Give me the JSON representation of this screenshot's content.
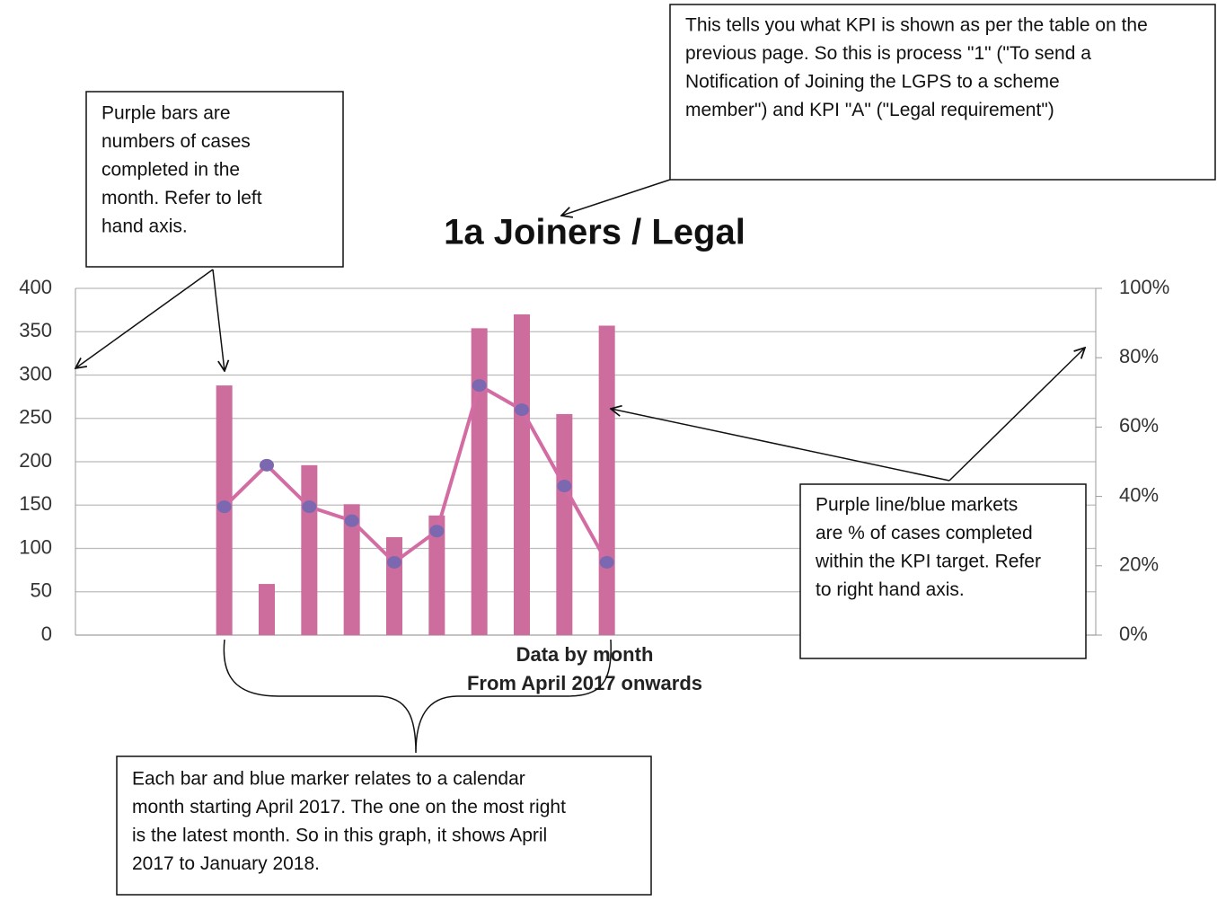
{
  "chart_data": {
    "type": "bar-line",
    "title": "1a Joiners / Legal",
    "xlabel": [
      "Data by month",
      "From April 2017 onwards"
    ],
    "categories": [
      null,
      null,
      null,
      null,
      null,
      null,
      null,
      null,
      null,
      null,
      null,
      null,
      null,
      null,
      null,
      null,
      null,
      null,
      null,
      null,
      null,
      null,
      null,
      null
    ],
    "series": [
      {
        "type": "bar",
        "color": "#cc6d9e",
        "values": [
          null,
          null,
          null,
          288,
          59,
          196,
          151,
          113,
          138,
          354,
          370,
          255,
          357,
          null,
          null,
          null,
          null,
          null,
          null,
          null,
          null,
          null,
          null,
          null
        ]
      },
      {
        "type": "line",
        "axis": "y2",
        "color": "#d46ca4",
        "marker_color": "#7b68b0",
        "values": [
          null,
          null,
          null,
          37,
          49,
          37,
          33,
          21,
          30,
          72,
          65,
          43,
          21,
          null,
          null,
          null,
          null,
          null,
          null,
          null,
          null,
          null,
          null,
          null
        ]
      }
    ],
    "ylim": [
      0,
      400
    ],
    "yticks": [
      0,
      50,
      100,
      150,
      200,
      250,
      300,
      350,
      400
    ],
    "y2lim": [
      0,
      100
    ],
    "y2ticks": [
      {
        "value": 0,
        "label": "0%"
      },
      {
        "value": 20,
        "label": "20%"
      },
      {
        "value": 40,
        "label": "40%"
      },
      {
        "value": 60,
        "label": "60%"
      },
      {
        "value": 80,
        "label": "80%"
      },
      {
        "value": 100,
        "label": "100%"
      }
    ],
    "grid": true
  },
  "annotations": [
    {
      "lines": [
        "Purple bars are",
        "numbers of cases",
        "completed in the",
        "month.  Refer to left",
        "hand axis."
      ]
    },
    {
      "lines": [
        "This tells you what KPI is shown as per the table on the",
        "previous page.  So this is process \"1\" (\"To send a",
        "Notification of Joining the LGPS to a scheme",
        "member\") and KPI \"A\" (\"Legal requirement\")"
      ]
    },
    {
      "lines": [
        "Purple line/blue markets",
        "are % of cases completed",
        "within the KPI target. Refer",
        "to right hand axis."
      ]
    },
    {
      "lines": [
        "Each bar and blue marker relates to a calendar",
        "month starting April 2017.  The one on the most right",
        "is the latest month. So in this graph, it shows April",
        "2017 to January 2018."
      ]
    }
  ]
}
